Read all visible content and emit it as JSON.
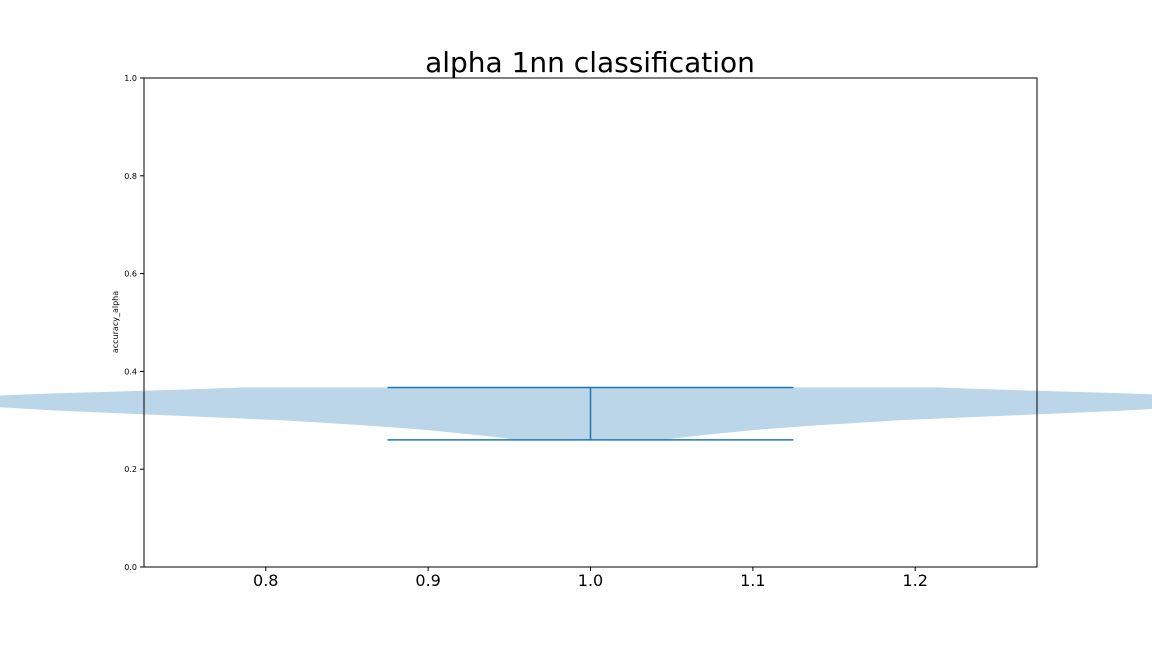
{
  "chart_data": {
    "type": "violin",
    "title": "alpha 1nn classification",
    "xlabel": "",
    "ylabel": "accuracy_alpha",
    "xlim": [
      0.725,
      1.275
    ],
    "ylim": [
      0.0,
      1.0
    ],
    "xticks": [
      "0.8",
      "0.9",
      "1.0",
      "1.1",
      "1.2"
    ],
    "yticks": [
      "0.0",
      "0.2",
      "0.4",
      "0.6",
      "0.8",
      "1.0"
    ],
    "grid": false,
    "colors": {
      "body": "#1f77b4",
      "lines": "#1f77b4"
    },
    "violins": [
      {
        "position": 1.0,
        "min": 0.26,
        "max": 0.367,
        "half_width_profile": [
          [
            0.26,
            0.046
          ],
          [
            0.264,
            0.054
          ],
          [
            0.27,
            0.07
          ],
          [
            0.28,
            0.1
          ],
          [
            0.29,
            0.14
          ],
          [
            0.3,
            0.19
          ],
          [
            0.31,
            0.26
          ],
          [
            0.32,
            0.33
          ],
          [
            0.33,
            0.38
          ],
          [
            0.335,
            0.4
          ],
          [
            0.34,
            0.41
          ],
          [
            0.345,
            0.4
          ],
          [
            0.35,
            0.37
          ],
          [
            0.355,
            0.33
          ],
          [
            0.36,
            0.28
          ],
          [
            0.364,
            0.24
          ],
          [
            0.367,
            0.215
          ]
        ]
      }
    ]
  }
}
